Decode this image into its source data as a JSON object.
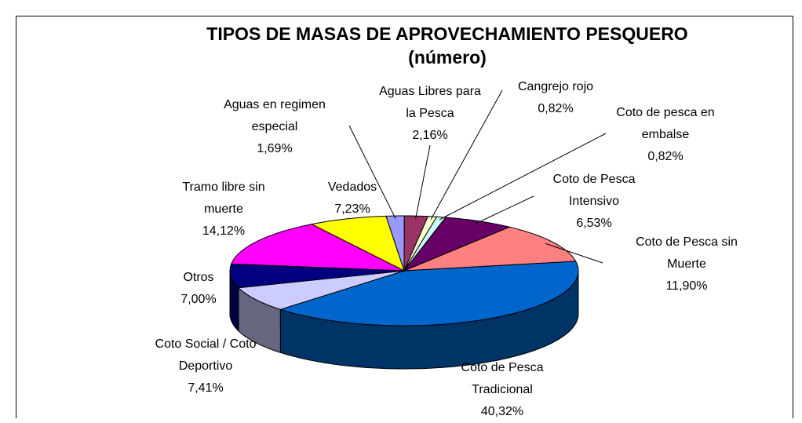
{
  "chart_data": {
    "type": "pie",
    "title": "TIPOS DE MASAS DE APROVECHAMIENTO PESQUERO",
    "subtitle": "(número)",
    "categories": [
      "Aguas en regimen especial",
      "Aguas Libres para la Pesca",
      "Cangrejo rojo",
      "Coto de pesca en embalse",
      "Coto de Pesca Intensivo",
      "Coto de Pesca sin Muerte",
      "Coto de Pesca Tradicional",
      "Coto Social / Coto Deportivo",
      "Otros",
      "Tramo libre sin muerte",
      "Vedados"
    ],
    "values": [
      1.69,
      2.16,
      0.82,
      0.82,
      6.53,
      11.9,
      40.32,
      7.41,
      7.0,
      14.12,
      7.23
    ],
    "value_labels": [
      "1,69%",
      "2,16%",
      "0,82%",
      "0,82%",
      "6,53%",
      "11,90%",
      "40,32%",
      "7,41%",
      "7,00%",
      "14,12%",
      "7,23%"
    ],
    "colors": [
      "#9999ff",
      "#993366",
      "#ffffcc",
      "#ccffff",
      "#660066",
      "#ff8080",
      "#0066cc",
      "#ccccff",
      "#000080",
      "#ff00ff",
      "#ffff00"
    ]
  }
}
